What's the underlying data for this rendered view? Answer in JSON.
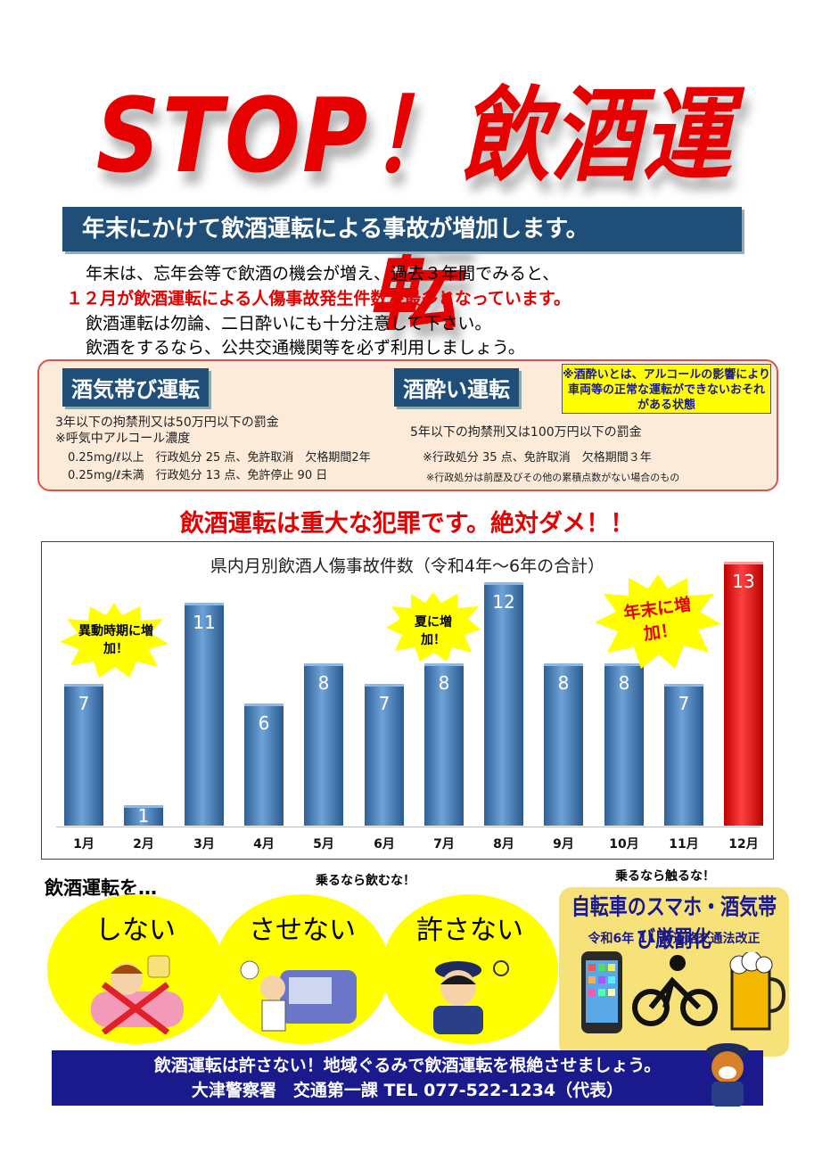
{
  "title": "STOP！飲酒運転",
  "headline": "年末にかけて飲酒運転による事故が増加します。",
  "intro": {
    "line1": "年末は、忘年会等で飲酒の機会が増え、過去３年間でみると、",
    "line2": "１２月が飲酒運転による人傷事故発生件数が最多となっています。",
    "line3": "飲酒運転は勿論、二日酔いにも十分注意して下さい。",
    "line4": "飲酒をするなら、公共交通機関等を必ず利用しましょう。"
  },
  "penalties": {
    "dui_title": "酒気帯び運転",
    "dui_line1": "3年以下の拘禁刑又は50万円以下の罰金",
    "dui_line2": "※呼気中アルコール濃度",
    "dui_line3": "0.25mg/ℓ以上　行政処分 25 点、免許取消　欠格期間2年",
    "dui_line4": "0.25mg/ℓ未満　行政処分 13 点、免許停止 90 日",
    "drunk_title": "酒酔い運転",
    "drunk_note": "※酒酔いとは、アルコールの影響により車両等の正常な運転ができないおそれがある状態",
    "drunk_line1": "5年以下の拘禁刑又は100万円以下の罰金",
    "drunk_line2": "※行政処分 35 点、免許取消　欠格期間３年",
    "drunk_line3": "※行政処分は前歴及びその他の累積点数がない場合のもの"
  },
  "crime_message": "飲酒運転は重大な犯罪です。絶対ダメ！！",
  "chart_data": {
    "type": "bar",
    "title": "県内月別飲酒人傷事故件数（令和4年～6年の合計）",
    "categories": [
      "1月",
      "2月",
      "3月",
      "4月",
      "5月",
      "6月",
      "7月",
      "8月",
      "9月",
      "10月",
      "11月",
      "12月"
    ],
    "values": [
      7,
      1,
      11,
      6,
      8,
      7,
      8,
      12,
      8,
      8,
      7,
      13
    ],
    "ylim": [
      0,
      13
    ],
    "highlight_color": "#e60000",
    "bar_color": "#3a72b0",
    "annotations": [
      "異動時期に増加！",
      "夏に増加！",
      "年末に増加！"
    ]
  },
  "campaign": {
    "lead": "飲酒運転を…",
    "tag1": "乗るなら飲むな！",
    "tag2": "乗るなら触るな！",
    "words": [
      "しない",
      "させない",
      "許さない"
    ],
    "bike_title": "自転車のスマホ・酒気帯び厳罰化",
    "bike_sub": "令和6年 11 月道路交通法改正"
  },
  "footer": {
    "line1": "飲酒運転は許さない！地域ぐるみで飲酒運転を根絶させましょう。",
    "line2": "大津警察署　交通第一課 TEL 077-522-1234（代表）"
  }
}
